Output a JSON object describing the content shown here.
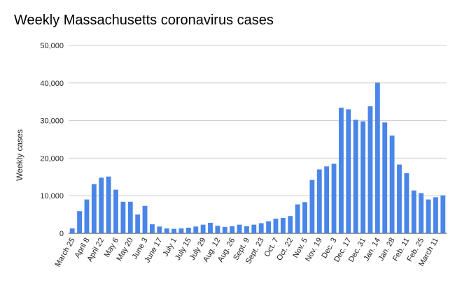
{
  "chart_data": {
    "type": "bar",
    "title": "Weekly Massachusetts coronavirus cases",
    "xlabel": "",
    "ylabel": "Weekly cases",
    "ylim": [
      0,
      50000
    ],
    "yticks": [
      0,
      10000,
      20000,
      30000,
      40000,
      50000
    ],
    "ytick_labels": [
      "0",
      "10,000",
      "20,000",
      "30,000",
      "40,000",
      "50,000"
    ],
    "grid": true,
    "bar_color": "#4a86e8",
    "categories": [
      "March 25",
      "",
      "April 8",
      "",
      "April 22",
      "",
      "May 6",
      "",
      "May 20",
      "",
      "June 3",
      "",
      "June 17",
      "",
      "July 1",
      "",
      "July 15",
      "",
      "July 29",
      "",
      "Aug. 12",
      "",
      "Aug. 26",
      "",
      "Sept. 9",
      "",
      "Sept. 23",
      "",
      "Oct. 7",
      "",
      "Oct. 22",
      "",
      "Nov. 5",
      "",
      "Nov. 19",
      "",
      "Dec. 3",
      "",
      "Dec. 17",
      "",
      "Dec. 31",
      "",
      "Jan. 14",
      "",
      "Jan. 28",
      "",
      "Feb. 11",
      "",
      "Feb. 25",
      "",
      "March 11",
      ""
    ],
    "values": [
      1300,
      5900,
      9000,
      13100,
      14800,
      15100,
      11600,
      8400,
      8400,
      5000,
      7300,
      2400,
      1800,
      1300,
      1200,
      1300,
      1500,
      1800,
      2300,
      2800,
      2000,
      1700,
      1900,
      2300,
      1900,
      2300,
      2700,
      3200,
      3900,
      4100,
      4600,
      7700,
      8300,
      14200,
      17000,
      17800,
      18500,
      33400,
      33000,
      30200,
      29800,
      33800,
      40100,
      29500,
      26000,
      18300,
      16000,
      11400,
      10700,
      9000,
      9600,
      10100
    ]
  }
}
